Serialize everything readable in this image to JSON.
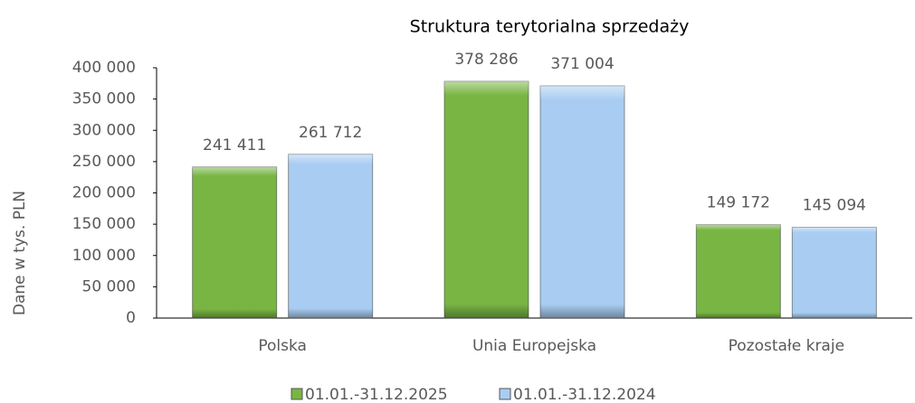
{
  "chart_data": {
    "type": "bar",
    "title": "Struktura terytorialna sprzedaży",
    "y_label": "Dane w tys. PLN",
    "categories": [
      "Polska",
      "Unia Europejska",
      "Pozostałe kraje"
    ],
    "series": [
      {
        "name": "01.01.-31.12.2025",
        "color": "#78b543",
        "values": [
          241411,
          378286,
          149172
        ],
        "value_labels": [
          "241 411",
          "378 286",
          "149 172"
        ]
      },
      {
        "name": "01.01.-31.12.2024",
        "color": "#a9cdf2",
        "values": [
          261712,
          371004,
          145094
        ],
        "value_labels": [
          "261 712",
          "371 004",
          "145 094"
        ]
      }
    ],
    "ylim": [
      0,
      400000
    ],
    "yticks": [
      0,
      {
        "value": 50000,
        "label": "50 000"
      },
      {
        "value": 100000,
        "label": "100 000"
      },
      {
        "value": 150000,
        "label": "150 000"
      },
      {
        "value": 200000,
        "label": "200 000"
      },
      {
        "value": 250000,
        "label": "250 000"
      },
      {
        "value": 300000,
        "label": "300 000"
      },
      {
        "value": 350000,
        "label": "350 000"
      },
      {
        "value": 400000,
        "label": "400 000"
      }
    ],
    "grid": false,
    "legend": "bottom"
  }
}
